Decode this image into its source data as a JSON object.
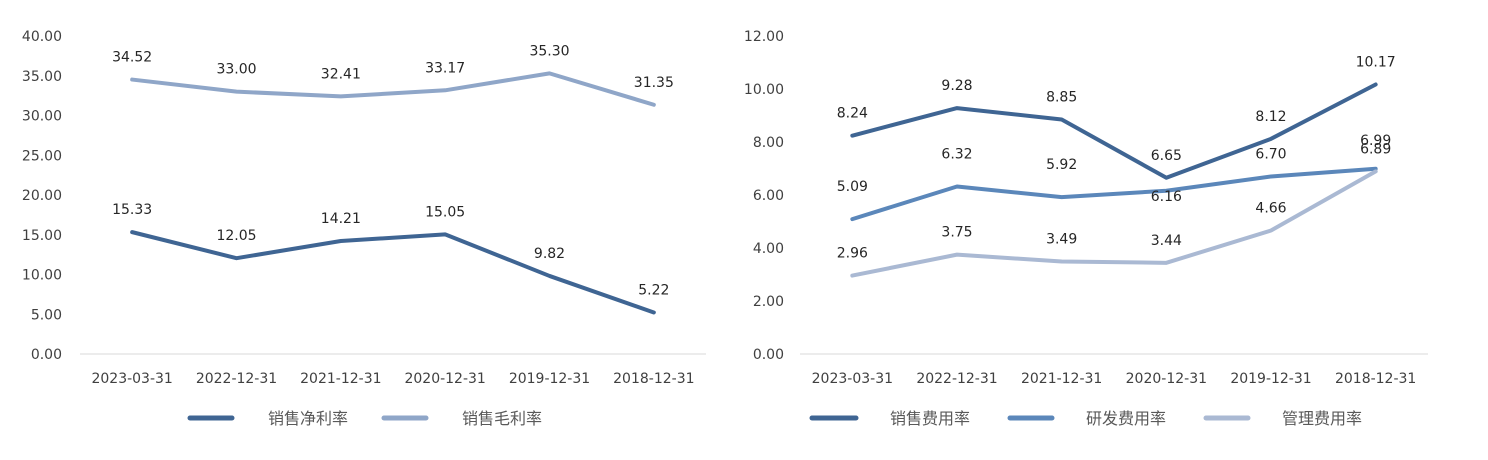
{
  "chart_data": [
    {
      "type": "line",
      "categories": [
        "2023-03-31",
        "2022-12-31",
        "2021-12-31",
        "2020-12-31",
        "2019-12-31",
        "2018-12-31"
      ],
      "ylim": [
        0,
        40
      ],
      "yticks": [
        "0.00",
        "5.00",
        "10.00",
        "15.00",
        "20.00",
        "25.00",
        "30.00",
        "35.00",
        "40.00"
      ],
      "grid": false,
      "legend": "bottom",
      "series": [
        {
          "name": "销售净利率",
          "color": "#3f6593",
          "values": [
            15.33,
            12.05,
            14.21,
            15.05,
            9.82,
            5.22
          ],
          "labels": [
            "15.33",
            "12.05",
            "14.21",
            "15.05",
            "9.82",
            "5.22"
          ]
        },
        {
          "name": "销售毛利率",
          "color": "#8fa6c8",
          "values": [
            34.52,
            33.0,
            32.41,
            33.17,
            35.3,
            31.35
          ],
          "labels": [
            "34.52",
            "33.00",
            "32.41",
            "33.17",
            "35.30",
            "31.35"
          ]
        }
      ]
    },
    {
      "type": "line",
      "categories": [
        "2023-03-31",
        "2022-12-31",
        "2021-12-31",
        "2020-12-31",
        "2019-12-31",
        "2018-12-31"
      ],
      "ylim": [
        0,
        12
      ],
      "yticks": [
        "0.00",
        "2.00",
        "4.00",
        "6.00",
        "8.00",
        "10.00",
        "12.00"
      ],
      "grid": false,
      "legend": "bottom",
      "series": [
        {
          "name": "销售费用率",
          "color": "#3f6593",
          "values": [
            8.24,
            9.28,
            8.85,
            6.65,
            8.12,
            10.17
          ],
          "labels": [
            "8.24",
            "9.28",
            "8.85",
            "6.65",
            "8.12",
            "10.17"
          ]
        },
        {
          "name": "研发费用率",
          "color": "#5b87ba",
          "values": [
            5.09,
            6.32,
            5.92,
            6.16,
            6.7,
            6.99
          ],
          "labels": [
            "5.09",
            "6.32",
            "5.92",
            "6.16",
            "6.70",
            "6.99"
          ]
        },
        {
          "name": "管理费用率",
          "color": "#aab9d3",
          "values": [
            2.96,
            3.75,
            3.49,
            3.44,
            4.66,
            6.89
          ],
          "labels": [
            "2.96",
            "3.75",
            "3.49",
            "3.44",
            "4.66",
            "6.89"
          ]
        }
      ]
    }
  ]
}
